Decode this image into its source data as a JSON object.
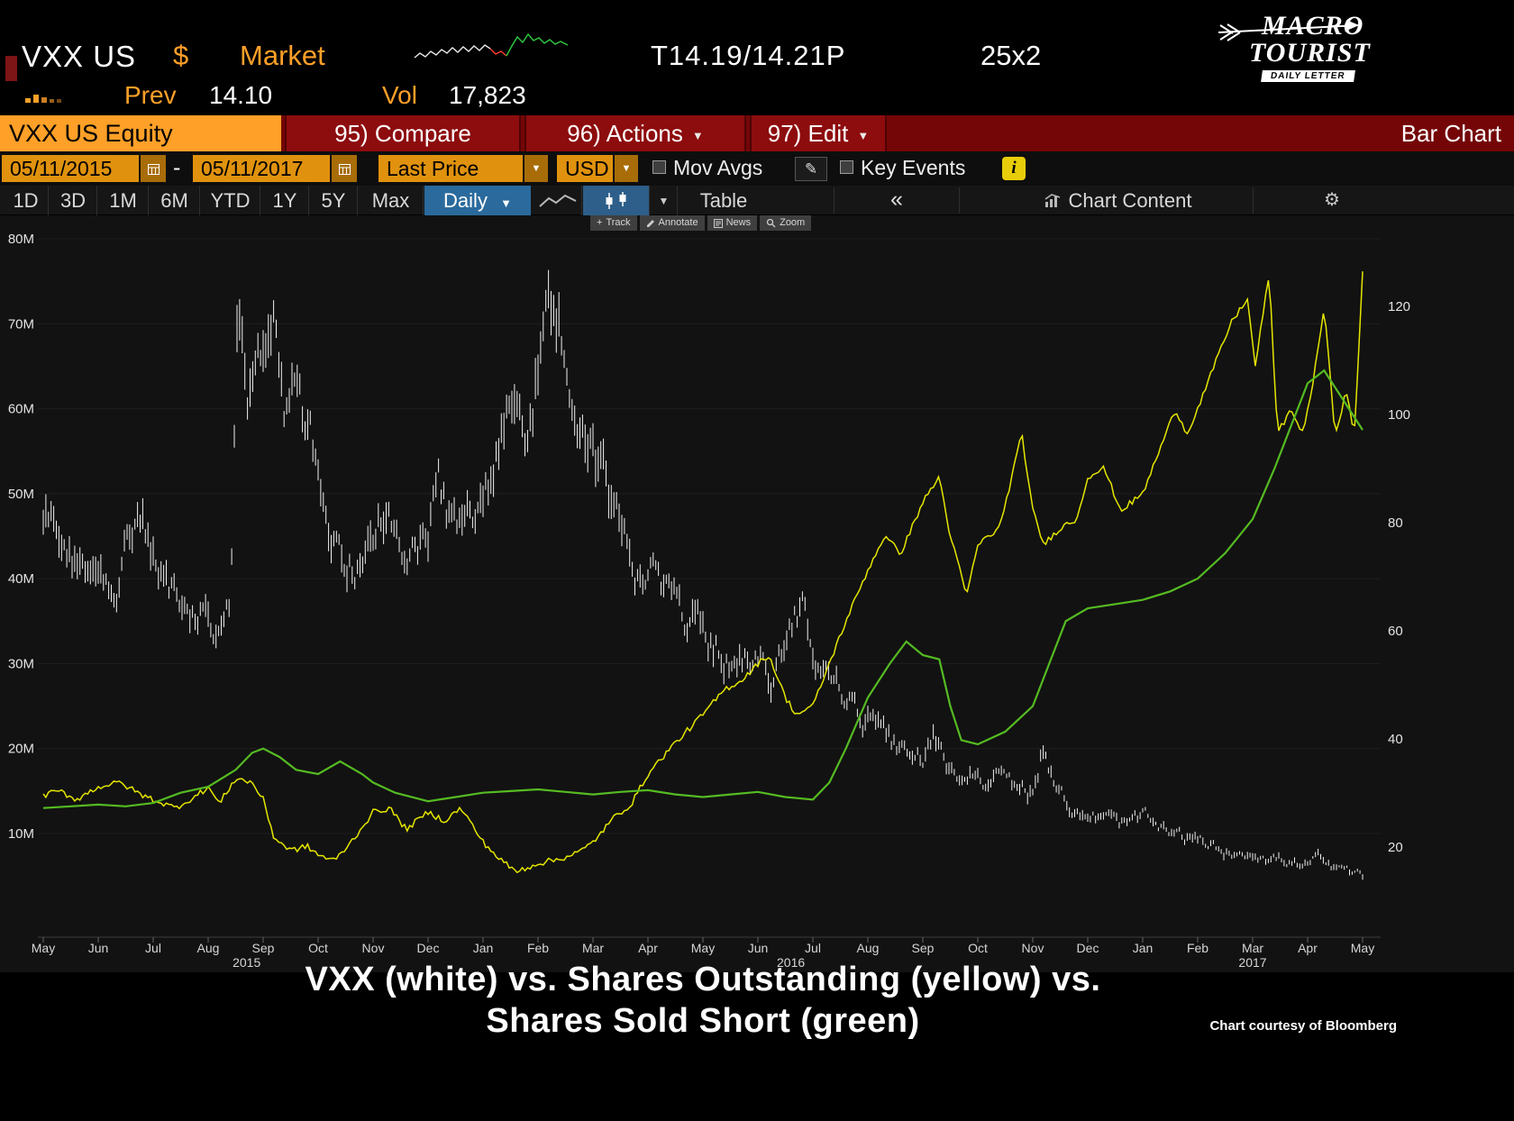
{
  "colors": {
    "amber": "#ffa028",
    "menu_red": "#740607",
    "selected_blue": "#2a6a9c",
    "vxx_white": "#f2f2f2",
    "shares_outstanding_yellow": "#e6e600",
    "shares_short_green": "#55bb22"
  },
  "header": {
    "ticker": "VXX US",
    "currency_symbol": "$",
    "market_label": "Market",
    "quote": "T14.19/14.21P",
    "size": "25x2",
    "prev_label": "Prev",
    "prev_value": "14.10",
    "vol_label": "Vol",
    "vol_value": "17,823",
    "logo": {
      "line1": "MACRO",
      "line2": "TOURIST",
      "banner": "DAILY LETTER"
    }
  },
  "menubar": {
    "security": "VXX US Equity",
    "compare": "95) Compare",
    "actions": "96) Actions",
    "edit": "97) Edit",
    "right_label": "Bar Chart"
  },
  "toolbar": {
    "date_from": "05/11/2015",
    "date_sep": "-",
    "date_to": "05/11/2017",
    "field": "Last Price",
    "currency": "USD",
    "mov_avgs": "Mov Avgs",
    "key_events": "Key Events",
    "info": "i"
  },
  "periods": {
    "tabs": [
      "1D",
      "3D",
      "1M",
      "6M",
      "YTD",
      "1Y",
      "5Y",
      "Max"
    ],
    "frequency": "Daily",
    "table": "Table",
    "collapse": "«",
    "chart_content": "Chart Content"
  },
  "mini_toolbar": {
    "items": [
      "Track",
      "Annotate",
      "News",
      "Zoom"
    ]
  },
  "caption": {
    "line1": "VXX (white) vs. Shares Outstanding (yellow) vs.",
    "line2": "Shares Sold Short (green)",
    "credit": "Chart courtesy of Bloomberg"
  },
  "chart_data": {
    "type": "mixed",
    "title": "VXX (white) vs. Shares Outstanding (yellow) vs. Shares Sold Short (green)",
    "x_axis": {
      "start": "05/11/2015",
      "end": "05/11/2017",
      "months": [
        "May",
        "Jun",
        "Jul",
        "Aug",
        "Sep",
        "Oct",
        "Nov",
        "Dec",
        "Jan",
        "Feb",
        "Mar",
        "Apr",
        "May",
        "Jun",
        "Jul",
        "Aug",
        "Sep",
        "Oct",
        "Nov",
        "Dec",
        "Jan",
        "Feb",
        "Mar",
        "Apr",
        "May"
      ],
      "years": [
        {
          "label": "2015",
          "month": 3.7
        },
        {
          "label": "2016",
          "month": 13.6
        },
        {
          "label": "2017",
          "month": 22.0
        }
      ]
    },
    "left_axis": {
      "units": "millions of shares",
      "ticks": [
        "80M",
        "70M",
        "60M",
        "50M",
        "40M",
        "30M",
        "20M",
        "10M"
      ],
      "range_millions": [
        0,
        81
      ]
    },
    "right_axis": {
      "units": "USD price",
      "ticks": [
        "120",
        "100",
        "80",
        "60",
        "40",
        "20"
      ],
      "range_usd": [
        3,
        134
      ]
    },
    "grid": "faint-horizontal",
    "legend_position": "caption-below",
    "series": [
      {
        "name": "VXX last price",
        "type": "ohlc_bars",
        "axis": "right",
        "color": "#f2f2f2",
        "points": [
          [
            0,
            83
          ],
          [
            0.3,
            79
          ],
          [
            0.7,
            74
          ],
          [
            1,
            77
          ],
          [
            1.3,
            71
          ],
          [
            1.7,
            79
          ],
          [
            2,
            74
          ],
          [
            2.3,
            66
          ],
          [
            2.6,
            63
          ],
          [
            2.9,
            65
          ],
          [
            3.1,
            62
          ],
          [
            3.4,
            70
          ],
          [
            3.55,
            127
          ],
          [
            3.7,
            100
          ],
          [
            3.85,
            118
          ],
          [
            4,
            108
          ],
          [
            4.2,
            113
          ],
          [
            4.4,
            98
          ],
          [
            4.6,
            102
          ],
          [
            4.8,
            95
          ],
          [
            5,
            90
          ],
          [
            5.2,
            82
          ],
          [
            5.5,
            76
          ],
          [
            5.8,
            73
          ],
          [
            6,
            80
          ],
          [
            6.2,
            83
          ],
          [
            6.5,
            75
          ],
          [
            6.8,
            72
          ],
          [
            7,
            76
          ],
          [
            7.2,
            86
          ],
          [
            7.5,
            77
          ],
          [
            7.8,
            80
          ],
          [
            8,
            85
          ],
          [
            8.3,
            95
          ],
          [
            8.6,
            105
          ],
          [
            8.8,
            100
          ],
          [
            9,
            110
          ],
          [
            9.2,
            124
          ],
          [
            9.4,
            115
          ],
          [
            9.6,
            105
          ],
          [
            9.8,
            100
          ],
          [
            10,
            94
          ],
          [
            10.3,
            85
          ],
          [
            10.6,
            76
          ],
          [
            11,
            70
          ],
          [
            11.3,
            66
          ],
          [
            11.6,
            63
          ],
          [
            12,
            60
          ],
          [
            12.3,
            57
          ],
          [
            12.6,
            55
          ],
          [
            13,
            53
          ],
          [
            13.3,
            51
          ],
          [
            13.6,
            60
          ],
          [
            13.8,
            65
          ],
          [
            14,
            58
          ],
          [
            14.3,
            52
          ],
          [
            14.6,
            47
          ],
          [
            15,
            43
          ],
          [
            15.3,
            40
          ],
          [
            15.6,
            37
          ],
          [
            16,
            36
          ],
          [
            16.2,
            40
          ],
          [
            16.5,
            35
          ],
          [
            16.8,
            33
          ],
          [
            17,
            34
          ],
          [
            17.3,
            33
          ],
          [
            17.6,
            31
          ],
          [
            18,
            30
          ],
          [
            18.15,
            37
          ],
          [
            18.4,
            30
          ],
          [
            18.7,
            28
          ],
          [
            19,
            26.5
          ],
          [
            19.3,
            25
          ],
          [
            19.6,
            24
          ],
          [
            20,
            25
          ],
          [
            20.3,
            23
          ],
          [
            20.6,
            22
          ],
          [
            21,
            21
          ],
          [
            21.3,
            20
          ],
          [
            21.6,
            19
          ],
          [
            22,
            19.5
          ],
          [
            22.3,
            18
          ],
          [
            22.6,
            17.5
          ],
          [
            23,
            16.5
          ],
          [
            23.2,
            18
          ],
          [
            23.5,
            15.5
          ],
          [
            23.8,
            15
          ],
          [
            24,
            14.2
          ]
        ]
      },
      {
        "name": "Shares Outstanding",
        "type": "line",
        "axis": "left",
        "color": "#e6e600",
        "noise": true,
        "points": [
          [
            0,
            14.5
          ],
          [
            0.3,
            15
          ],
          [
            0.6,
            14
          ],
          [
            1,
            15.5
          ],
          [
            1.4,
            16
          ],
          [
            1.8,
            14.5
          ],
          [
            2,
            14
          ],
          [
            2.4,
            13
          ],
          [
            2.8,
            14.5
          ],
          [
            3,
            15.5
          ],
          [
            3.2,
            13.5
          ],
          [
            3.5,
            16.5
          ],
          [
            3.8,
            16
          ],
          [
            4,
            14
          ],
          [
            4.2,
            9.5
          ],
          [
            4.5,
            8
          ],
          [
            4.8,
            8.5
          ],
          [
            5,
            7.5
          ],
          [
            5.3,
            6.8
          ],
          [
            5.6,
            9
          ],
          [
            6,
            12.5
          ],
          [
            6.3,
            13
          ],
          [
            6.6,
            10.5
          ],
          [
            7,
            12.5
          ],
          [
            7.3,
            11.5
          ],
          [
            7.6,
            13
          ],
          [
            8,
            9
          ],
          [
            8.3,
            7
          ],
          [
            8.6,
            5.5
          ],
          [
            9,
            6.5
          ],
          [
            9.4,
            7
          ],
          [
            9.8,
            8
          ],
          [
            10,
            9
          ],
          [
            10.4,
            12
          ],
          [
            10.7,
            13.5
          ],
          [
            11,
            17
          ],
          [
            11.4,
            20
          ],
          [
            11.7,
            22
          ],
          [
            12,
            24
          ],
          [
            12.4,
            27
          ],
          [
            12.7,
            28
          ],
          [
            13,
            30
          ],
          [
            13.2,
            31
          ],
          [
            13.5,
            26
          ],
          [
            13.7,
            24
          ],
          [
            14,
            25
          ],
          [
            14.3,
            30
          ],
          [
            14.6,
            35
          ],
          [
            15,
            41
          ],
          [
            15.3,
            45
          ],
          [
            15.6,
            43
          ],
          [
            16,
            49
          ],
          [
            16.3,
            52
          ],
          [
            16.5,
            45
          ],
          [
            16.8,
            38
          ],
          [
            17,
            44
          ],
          [
            17.4,
            46
          ],
          [
            17.8,
            57
          ],
          [
            18,
            48
          ],
          [
            18.2,
            44
          ],
          [
            18.5,
            46
          ],
          [
            18.8,
            47
          ],
          [
            19,
            52
          ],
          [
            19.3,
            53
          ],
          [
            19.6,
            48
          ],
          [
            20,
            50
          ],
          [
            20.3,
            55
          ],
          [
            20.6,
            60
          ],
          [
            20.8,
            57
          ],
          [
            21,
            60
          ],
          [
            21.3,
            65
          ],
          [
            21.6,
            70
          ],
          [
            21.9,
            73
          ],
          [
            22.05,
            65
          ],
          [
            22.3,
            76
          ],
          [
            22.45,
            57
          ],
          [
            22.7,
            60
          ],
          [
            22.9,
            57
          ],
          [
            23.1,
            63
          ],
          [
            23.3,
            72
          ],
          [
            23.5,
            57
          ],
          [
            23.7,
            62
          ],
          [
            23.85,
            57
          ],
          [
            24,
            76
          ]
        ]
      },
      {
        "name": "Shares Sold Short",
        "type": "line",
        "axis": "left",
        "color": "#55bb22",
        "points": [
          [
            0,
            13
          ],
          [
            0.5,
            13.2
          ],
          [
            1,
            13.4
          ],
          [
            1.5,
            13.2
          ],
          [
            2,
            13.6
          ],
          [
            2.5,
            14.8
          ],
          [
            3,
            15.5
          ],
          [
            3.5,
            17.5
          ],
          [
            3.8,
            19.5
          ],
          [
            4,
            20
          ],
          [
            4.3,
            19
          ],
          [
            4.6,
            17.5
          ],
          [
            5,
            17
          ],
          [
            5.4,
            18.5
          ],
          [
            5.8,
            17
          ],
          [
            6,
            16
          ],
          [
            6.4,
            14.8
          ],
          [
            7,
            13.8
          ],
          [
            7.5,
            14.3
          ],
          [
            8,
            14.8
          ],
          [
            8.5,
            15
          ],
          [
            9,
            15.2
          ],
          [
            9.5,
            14.9
          ],
          [
            10,
            14.6
          ],
          [
            10.5,
            14.9
          ],
          [
            11,
            15.1
          ],
          [
            11.5,
            14.6
          ],
          [
            12,
            14.3
          ],
          [
            12.5,
            14.6
          ],
          [
            13,
            14.9
          ],
          [
            13.5,
            14.3
          ],
          [
            14,
            14
          ],
          [
            14.3,
            16
          ],
          [
            14.6,
            20
          ],
          [
            15,
            26
          ],
          [
            15.4,
            30
          ],
          [
            15.7,
            32.6
          ],
          [
            16,
            31
          ],
          [
            16.3,
            30.5
          ],
          [
            16.5,
            25
          ],
          [
            16.7,
            21
          ],
          [
            17,
            20.5
          ],
          [
            17.5,
            22
          ],
          [
            18,
            25
          ],
          [
            18.3,
            30
          ],
          [
            18.6,
            35
          ],
          [
            19,
            36.5
          ],
          [
            19.5,
            37
          ],
          [
            20,
            37.5
          ],
          [
            20.5,
            38.5
          ],
          [
            21,
            40
          ],
          [
            21.5,
            43
          ],
          [
            22,
            47
          ],
          [
            22.4,
            53
          ],
          [
            22.7,
            58
          ],
          [
            23,
            63
          ],
          [
            23.3,
            64.5
          ],
          [
            23.6,
            61.5
          ],
          [
            24,
            57.5
          ]
        ]
      }
    ]
  }
}
